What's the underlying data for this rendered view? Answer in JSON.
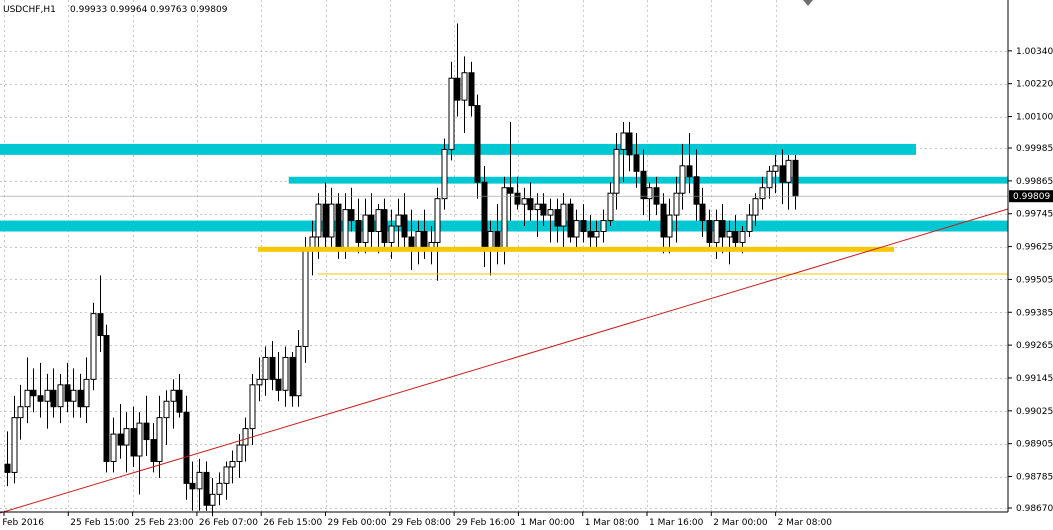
{
  "header": {
    "symbol": "USDCHF,H1",
    "ohlc": "0.99933 0.99964 0.99763 0.99809"
  },
  "current_price_label": "0.99809",
  "colors": {
    "background": "#ffffff",
    "grid": "#c8c8c8",
    "candle_bull": "#ffffff",
    "candle_bear": "#000000",
    "candle_outline": "#000000",
    "zone": "#00c8d2",
    "support_line": "#f5c800",
    "trendline": "#c81e1e",
    "price_tag_bg": "#000000",
    "price_tag_text": "#ffffff"
  },
  "chart_data": {
    "type": "candlestick",
    "title": "USDCHF,H1",
    "y_range": [
      0.9867,
      1.0046
    ],
    "y_ticks": [
      "1.00340",
      "1.00220",
      "1.00100",
      "0.99985",
      "0.99865",
      "0.99745",
      "0.99625",
      "0.99505",
      "0.99385",
      "0.99265",
      "0.99145",
      "0.99025",
      "0.98905",
      "0.98785",
      "0.98670"
    ],
    "x_ticks": [
      "25 Feb 2016",
      "25 Feb 15:00",
      "25 Feb 23:00",
      "26 Feb 07:00",
      "26 Feb 15:00",
      "29 Feb 00:00",
      "29 Feb 08:00",
      "29 Feb 16:00",
      "1 Mar 00:00",
      "1 Mar 08:00",
      "1 Mar 16:00",
      "2 Mar 00:00",
      "2 Mar 08:00"
    ],
    "grid": true,
    "current_price": 0.99809,
    "candles": [
      {
        "o": 0.9883,
        "h": 0.9895,
        "l": 0.9875,
        "c": 0.988
      },
      {
        "o": 0.988,
        "h": 0.9908,
        "l": 0.9876,
        "c": 0.99
      },
      {
        "o": 0.99,
        "h": 0.9912,
        "l": 0.9892,
        "c": 0.9904
      },
      {
        "o": 0.9904,
        "h": 0.9922,
        "l": 0.9898,
        "c": 0.991
      },
      {
        "o": 0.991,
        "h": 0.9918,
        "l": 0.9902,
        "c": 0.9908
      },
      {
        "o": 0.9908,
        "h": 0.992,
        "l": 0.99,
        "c": 0.9906
      },
      {
        "o": 0.9906,
        "h": 0.9916,
        "l": 0.9896,
        "c": 0.991
      },
      {
        "o": 0.991,
        "h": 0.9918,
        "l": 0.99,
        "c": 0.9904
      },
      {
        "o": 0.9904,
        "h": 0.9916,
        "l": 0.9898,
        "c": 0.9912
      },
      {
        "o": 0.9912,
        "h": 0.992,
        "l": 0.9902,
        "c": 0.9906
      },
      {
        "o": 0.9906,
        "h": 0.9918,
        "l": 0.99,
        "c": 0.991
      },
      {
        "o": 0.991,
        "h": 0.9916,
        "l": 0.99,
        "c": 0.9904
      },
      {
        "o": 0.9904,
        "h": 0.9922,
        "l": 0.9898,
        "c": 0.9914
      },
      {
        "o": 0.9914,
        "h": 0.9942,
        "l": 0.991,
        "c": 0.9938
      },
      {
        "o": 0.9938,
        "h": 0.9952,
        "l": 0.9924,
        "c": 0.993
      },
      {
        "o": 0.993,
        "h": 0.9934,
        "l": 0.988,
        "c": 0.9884
      },
      {
        "o": 0.9884,
        "h": 0.99,
        "l": 0.988,
        "c": 0.9894
      },
      {
        "o": 0.9894,
        "h": 0.9905,
        "l": 0.9885,
        "c": 0.989
      },
      {
        "o": 0.989,
        "h": 0.9902,
        "l": 0.988,
        "c": 0.9896
      },
      {
        "o": 0.9896,
        "h": 0.9904,
        "l": 0.9882,
        "c": 0.9886
      },
      {
        "o": 0.9886,
        "h": 0.9902,
        "l": 0.9872,
        "c": 0.9898
      },
      {
        "o": 0.9898,
        "h": 0.9908,
        "l": 0.9886,
        "c": 0.9892
      },
      {
        "o": 0.9892,
        "h": 0.9898,
        "l": 0.988,
        "c": 0.9884
      },
      {
        "o": 0.9884,
        "h": 0.9908,
        "l": 0.9878,
        "c": 0.99
      },
      {
        "o": 0.99,
        "h": 0.991,
        "l": 0.989,
        "c": 0.9906
      },
      {
        "o": 0.9906,
        "h": 0.9914,
        "l": 0.9896,
        "c": 0.991
      },
      {
        "o": 0.991,
        "h": 0.9916,
        "l": 0.99,
        "c": 0.9902
      },
      {
        "o": 0.9902,
        "h": 0.9908,
        "l": 0.987,
        "c": 0.9876
      },
      {
        "o": 0.9876,
        "h": 0.9884,
        "l": 0.9866,
        "c": 0.9874
      },
      {
        "o": 0.9874,
        "h": 0.9885,
        "l": 0.9866,
        "c": 0.988
      },
      {
        "o": 0.988,
        "h": 0.9884,
        "l": 0.9866,
        "c": 0.9868
      },
      {
        "o": 0.9868,
        "h": 0.9878,
        "l": 0.9864,
        "c": 0.9872
      },
      {
        "o": 0.9872,
        "h": 0.988,
        "l": 0.9868,
        "c": 0.9876
      },
      {
        "o": 0.9876,
        "h": 0.9884,
        "l": 0.987,
        "c": 0.9882
      },
      {
        "o": 0.9882,
        "h": 0.9888,
        "l": 0.9876,
        "c": 0.9884
      },
      {
        "o": 0.9884,
        "h": 0.9894,
        "l": 0.9878,
        "c": 0.989
      },
      {
        "o": 0.989,
        "h": 0.99,
        "l": 0.9884,
        "c": 0.9896
      },
      {
        "o": 0.9896,
        "h": 0.9916,
        "l": 0.989,
        "c": 0.9912
      },
      {
        "o": 0.9912,
        "h": 0.9922,
        "l": 0.9906,
        "c": 0.9914
      },
      {
        "o": 0.9914,
        "h": 0.9926,
        "l": 0.9908,
        "c": 0.9922
      },
      {
        "o": 0.9922,
        "h": 0.9928,
        "l": 0.991,
        "c": 0.9914
      },
      {
        "o": 0.9914,
        "h": 0.9924,
        "l": 0.9906,
        "c": 0.991
      },
      {
        "o": 0.991,
        "h": 0.9926,
        "l": 0.9904,
        "c": 0.9922
      },
      {
        "o": 0.9922,
        "h": 0.9924,
        "l": 0.9904,
        "c": 0.9908
      },
      {
        "o": 0.9908,
        "h": 0.9932,
        "l": 0.9904,
        "c": 0.9926
      },
      {
        "o": 0.9926,
        "h": 0.9966,
        "l": 0.992,
        "c": 0.9962
      },
      {
        "o": 0.9962,
        "h": 0.9972,
        "l": 0.9952,
        "c": 0.9966
      },
      {
        "o": 0.9966,
        "h": 0.9982,
        "l": 0.9958,
        "c": 0.9978
      },
      {
        "o": 0.9978,
        "h": 0.9986,
        "l": 0.9962,
        "c": 0.9966
      },
      {
        "o": 0.9966,
        "h": 0.9984,
        "l": 0.9962,
        "c": 0.9978
      },
      {
        "o": 0.9978,
        "h": 0.9982,
        "l": 0.9958,
        "c": 0.9962
      },
      {
        "o": 0.9962,
        "h": 0.9982,
        "l": 0.9958,
        "c": 0.9976
      },
      {
        "o": 0.9976,
        "h": 0.9984,
        "l": 0.9968,
        "c": 0.9972
      },
      {
        "o": 0.9972,
        "h": 0.998,
        "l": 0.996,
        "c": 0.9964
      },
      {
        "o": 0.9964,
        "h": 0.998,
        "l": 0.996,
        "c": 0.9974
      },
      {
        "o": 0.9974,
        "h": 0.9982,
        "l": 0.9962,
        "c": 0.9968
      },
      {
        "o": 0.9968,
        "h": 0.9978,
        "l": 0.996,
        "c": 0.9976
      },
      {
        "o": 0.9976,
        "h": 0.998,
        "l": 0.9962,
        "c": 0.9964
      },
      {
        "o": 0.9964,
        "h": 0.9976,
        "l": 0.9958,
        "c": 0.997
      },
      {
        "o": 0.997,
        "h": 0.998,
        "l": 0.9962,
        "c": 0.9974
      },
      {
        "o": 0.9974,
        "h": 0.9982,
        "l": 0.9962,
        "c": 0.9966
      },
      {
        "o": 0.9966,
        "h": 0.9976,
        "l": 0.9954,
        "c": 0.9962
      },
      {
        "o": 0.9962,
        "h": 0.9972,
        "l": 0.9956,
        "c": 0.9968
      },
      {
        "o": 0.9968,
        "h": 0.9976,
        "l": 0.9958,
        "c": 0.9962
      },
      {
        "o": 0.9962,
        "h": 0.997,
        "l": 0.9956,
        "c": 0.9964
      },
      {
        "o": 0.9964,
        "h": 0.9984,
        "l": 0.995,
        "c": 0.998
      },
      {
        "o": 0.998,
        "h": 1.0002,
        "l": 0.9976,
        "c": 0.9998
      },
      {
        "o": 0.9998,
        "h": 1.003,
        "l": 0.9994,
        "c": 1.0024
      },
      {
        "o": 1.0024,
        "h": 1.0044,
        "l": 1.001,
        "c": 1.0016
      },
      {
        "o": 1.0016,
        "h": 1.0032,
        "l": 1.0004,
        "c": 1.0026
      },
      {
        "o": 1.0026,
        "h": 1.003,
        "l": 1.001,
        "c": 1.0014
      },
      {
        "o": 1.0014,
        "h": 1.0018,
        "l": 0.998,
        "c": 0.9986
      },
      {
        "o": 0.9986,
        "h": 0.9992,
        "l": 0.9955,
        "c": 0.9962
      },
      {
        "o": 0.9962,
        "h": 0.9972,
        "l": 0.9952,
        "c": 0.9968
      },
      {
        "o": 0.9968,
        "h": 0.9978,
        "l": 0.9956,
        "c": 0.9962
      },
      {
        "o": 0.9962,
        "h": 0.9988,
        "l": 0.9956,
        "c": 0.9984
      },
      {
        "o": 0.9984,
        "h": 1.0008,
        "l": 0.9972,
        "c": 0.9982
      },
      {
        "o": 0.9982,
        "h": 0.9988,
        "l": 0.9976,
        "c": 0.9978
      },
      {
        "o": 0.9978,
        "h": 0.9984,
        "l": 0.997,
        "c": 0.998
      },
      {
        "o": 0.998,
        "h": 0.9986,
        "l": 0.9972,
        "c": 0.9976
      },
      {
        "o": 0.9976,
        "h": 0.9982,
        "l": 0.9966,
        "c": 0.9978
      },
      {
        "o": 0.9978,
        "h": 0.9982,
        "l": 0.997,
        "c": 0.9974
      },
      {
        "o": 0.9974,
        "h": 0.998,
        "l": 0.9964,
        "c": 0.9976
      },
      {
        "o": 0.9976,
        "h": 0.998,
        "l": 0.9964,
        "c": 0.997
      },
      {
        "o": 0.997,
        "h": 0.9982,
        "l": 0.9962,
        "c": 0.9978
      },
      {
        "o": 0.9978,
        "h": 0.998,
        "l": 0.9964,
        "c": 0.9966
      },
      {
        "o": 0.9966,
        "h": 0.9976,
        "l": 0.9962,
        "c": 0.9972
      },
      {
        "o": 0.9972,
        "h": 0.9978,
        "l": 0.9964,
        "c": 0.9968
      },
      {
        "o": 0.9968,
        "h": 0.9974,
        "l": 0.9962,
        "c": 0.9966
      },
      {
        "o": 0.9966,
        "h": 0.9972,
        "l": 0.9962,
        "c": 0.9968
      },
      {
        "o": 0.9968,
        "h": 0.9976,
        "l": 0.9964,
        "c": 0.9972
      },
      {
        "o": 0.9972,
        "h": 0.9986,
        "l": 0.997,
        "c": 0.9982
      },
      {
        "o": 0.9982,
        "h": 1.0004,
        "l": 0.9976,
        "c": 0.9998
      },
      {
        "o": 0.9998,
        "h": 1.0008,
        "l": 0.9986,
        "c": 1.0004
      },
      {
        "o": 1.0004,
        "h": 1.0008,
        "l": 0.999,
        "c": 0.9996
      },
      {
        "o": 0.9996,
        "h": 1.0004,
        "l": 0.9984,
        "c": 0.999
      },
      {
        "o": 0.999,
        "h": 0.9998,
        "l": 0.9974,
        "c": 0.998
      },
      {
        "o": 0.998,
        "h": 0.9986,
        "l": 0.9972,
        "c": 0.9984
      },
      {
        "o": 0.9984,
        "h": 0.9988,
        "l": 0.9974,
        "c": 0.9978
      },
      {
        "o": 0.9978,
        "h": 0.9982,
        "l": 0.996,
        "c": 0.9966
      },
      {
        "o": 0.9966,
        "h": 0.998,
        "l": 0.996,
        "c": 0.9974
      },
      {
        "o": 0.9974,
        "h": 0.9988,
        "l": 0.9964,
        "c": 0.9982
      },
      {
        "o": 0.9982,
        "h": 1.0,
        "l": 0.9976,
        "c": 0.9992
      },
      {
        "o": 0.9992,
        "h": 1.0004,
        "l": 0.9982,
        "c": 0.9988
      },
      {
        "o": 0.9988,
        "h": 0.9998,
        "l": 0.9972,
        "c": 0.9978
      },
      {
        "o": 0.9978,
        "h": 0.9984,
        "l": 0.9966,
        "c": 0.9972
      },
      {
        "o": 0.9972,
        "h": 0.9976,
        "l": 0.9962,
        "c": 0.9964
      },
      {
        "o": 0.9964,
        "h": 0.9976,
        "l": 0.9958,
        "c": 0.9972
      },
      {
        "o": 0.9972,
        "h": 0.9978,
        "l": 0.996,
        "c": 0.9966
      },
      {
        "o": 0.9966,
        "h": 0.9972,
        "l": 0.9956,
        "c": 0.9968
      },
      {
        "o": 0.9968,
        "h": 0.9974,
        "l": 0.9962,
        "c": 0.9964
      },
      {
        "o": 0.9964,
        "h": 0.997,
        "l": 0.996,
        "c": 0.9968
      },
      {
        "o": 0.9968,
        "h": 0.9978,
        "l": 0.9966,
        "c": 0.9974
      },
      {
        "o": 0.9974,
        "h": 0.9982,
        "l": 0.997,
        "c": 0.998
      },
      {
        "o": 0.998,
        "h": 0.9988,
        "l": 0.9976,
        "c": 0.9984
      },
      {
        "o": 0.9984,
        "h": 0.9992,
        "l": 0.998,
        "c": 0.999
      },
      {
        "o": 0.999,
        "h": 0.9996,
        "l": 0.9982,
        "c": 0.9992
      },
      {
        "o": 0.9992,
        "h": 0.9998,
        "l": 0.9978,
        "c": 0.9986
      },
      {
        "o": 0.9986,
        "h": 0.9996,
        "l": 0.9976,
        "c": 0.9994
      },
      {
        "o": 0.9994,
        "h": 0.9996,
        "l": 0.9976,
        "c": 0.99809
      }
    ],
    "zones": [
      {
        "name": "zone-upper",
        "y_low": 0.9996,
        "y_high": 1.0,
        "x_start_idx": 0,
        "x_end_idx": 200
      },
      {
        "name": "zone-middle",
        "y_low": 0.99855,
        "y_high": 0.9988,
        "x_start_idx": 43,
        "x_end_idx": 200
      },
      {
        "name": "zone-lower",
        "y_low": 0.9968,
        "y_high": 0.9972,
        "x_start_idx": 0,
        "x_end_idx": 200
      }
    ],
    "support_level": 0.99615,
    "support_level_2": 0.99525,
    "trendline": {
      "start": {
        "idx": -2,
        "y": 0.9867
      },
      "end": {
        "idx": 999,
        "y": 0.99745
      }
    }
  }
}
